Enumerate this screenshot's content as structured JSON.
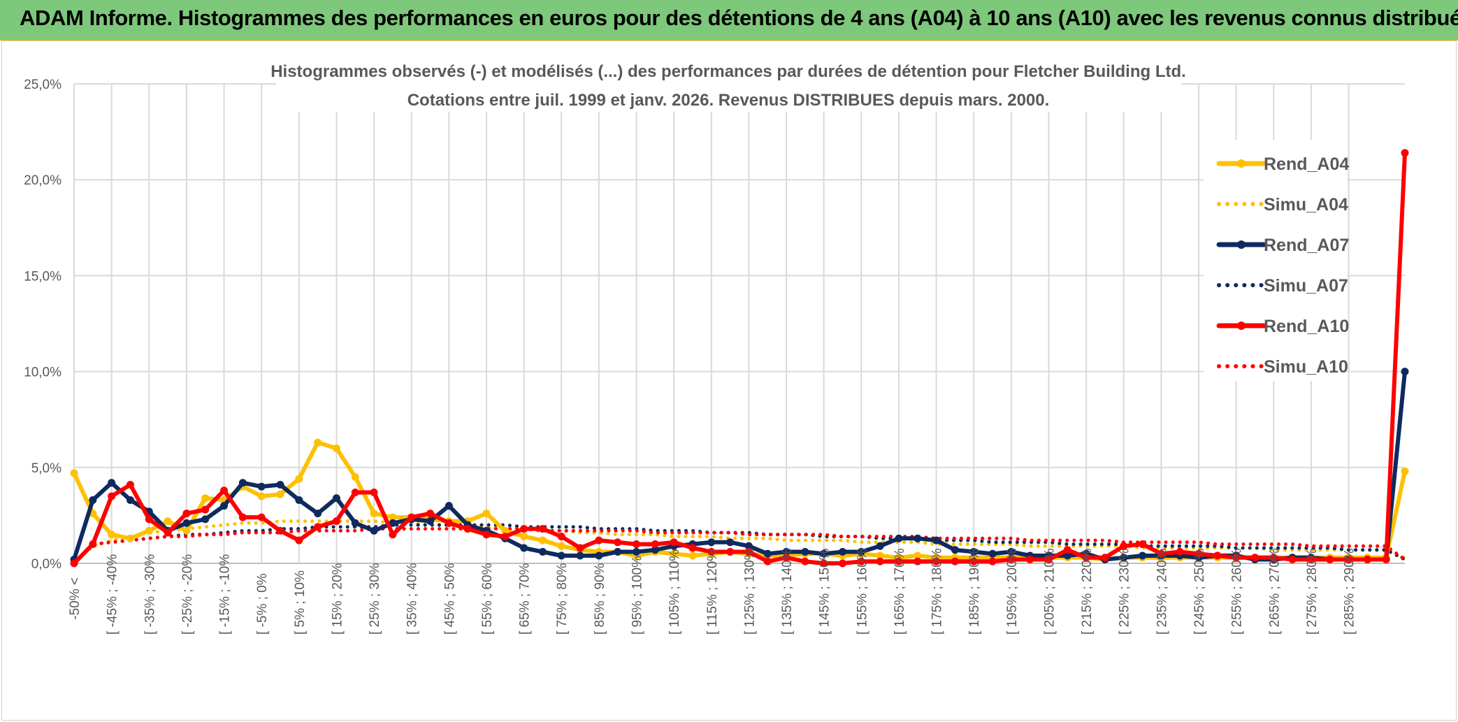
{
  "header": {
    "title": "ADAM Informe. Histogrammes des performances en euros pour des détentions de 4 ans (A04) à 10 ans (A10) avec les revenus connus distribués"
  },
  "chart_data": {
    "type": "line",
    "title": "Histogrammes observés (-) et modélisés (...) des performances par durées de détention pour Fletcher Building Ltd.",
    "subtitle": "Cotations entre juil. 1999 et janv. 2026. Revenus DISTRIBUES depuis mars. 2000.",
    "xlabel": "",
    "ylabel": "",
    "ylim": [
      0,
      25
    ],
    "yticks": [
      "0,0%",
      "5,0%",
      "10,0%",
      "15,0%",
      "20,0%",
      "25,0%"
    ],
    "grid": true,
    "legend_position": "right",
    "categories": [
      "-50% <",
      "[ -50% ; -45%",
      "[ -45% ; -40%",
      "[ -40% ; -35%",
      "[ -35% ; -30%",
      "[ -30% ; -25%",
      "[ -25% ; -20%",
      "[ -20% ; -15%",
      "[ -15% ; -10%",
      "[ -10% ; -5%",
      "[ -5% ; 0%",
      "[ 0% ; 5%",
      "[ 5% ; 10%",
      "[ 10% ; 15%",
      "[ 15% ; 20%",
      "[ 20% ; 25%",
      "[ 25% ; 30%",
      "[ 30% ; 35%",
      "[ 35% ; 40%",
      "[ 40% ; 45%",
      "[ 45% ; 50%",
      "[ 50% ; 55%",
      "[ 55% ; 60%",
      "[ 60% ; 65%",
      "[ 65% ; 70%",
      "[ 70% ; 75%",
      "[ 75% ; 80%",
      "[ 80% ; 85%",
      "[ 85% ; 90%",
      "[ 90% ; 95%",
      "[ 95% ; 100%",
      "[ 100% ; 105%",
      "[ 105% ; 110%",
      "[ 110% ; 115%",
      "[ 115% ; 120%",
      "[ 120% ; 125%",
      "[ 125% ; 130%",
      "[ 130% ; 135%",
      "[ 135% ; 140%",
      "[ 140% ; 145%",
      "[ 145% ; 150%",
      "[ 150% ; 155%",
      "[ 155% ; 160%",
      "[ 160% ; 165%",
      "[ 165% ; 170%",
      "[ 170% ; 175%",
      "[ 175% ; 180%",
      "[ 180% ; 185%",
      "[ 185% ; 190%",
      "[ 190% ; 195%",
      "[ 195% ; 200%",
      "[ 200% ; 205%",
      "[ 205% ; 210%",
      "[ 210% ; 215%",
      "[ 215% ; 220%",
      "[ 220% ; 225%",
      "[ 225% ; 230%",
      "[ 230% ; 235%",
      "[ 235% ; 240%",
      "[ 240% ; 245%",
      "[ 245% ; 250%",
      "[ 250% ; 255%",
      "[ 255% ; 260%",
      "[ 260% ; 265%",
      "[ 265% ; 270%",
      "[ 270% ; 275%",
      "[ 275% ; 280%",
      "[ 280% ; 285%",
      "[ 285% ; 290%",
      "[ 290% ; 295%",
      "[ 295% ; 300%",
      "> 300%"
    ],
    "visible_tick_labels": [
      "-50% <",
      "[ -45% ; -40%",
      "[ -35% ; -30%",
      "[ -25% ; -20%",
      "[ -15% ; -10%",
      "[ -5% ; 0%",
      "[ 5% ; 10%",
      "[ 15% ; 20%",
      "[ 25% ; 30%",
      "[ 35% ; 40%",
      "[ 45% ; 50%",
      "[ 55% ; 60%",
      "[ 65% ; 70%",
      "[ 75% ; 80%",
      "[ 85% ; 90%",
      "[ 95% ; 100%",
      "[ 105% ; 110%",
      "[ 115% ; 120%",
      "[ 125% ; 130%",
      "[ 135% ; 140%",
      "[ 145% ; 150%",
      "[ 155% ; 160%",
      "[ 165% ; 170%",
      "[ 175% ; 180%",
      "[ 185% ; 190%",
      "[ 195% ; 200%",
      "[ 205% ; 210%",
      "[ 215% ; 220%",
      "[ 225% ; 230%",
      "[ 235% ; 240%",
      "[ 245% ; 250%",
      "[ 255% ; 260%",
      "[ 265% ; 270%",
      "[ 275% ; 280%",
      "[ 285% ; 290%"
    ],
    "series": [
      {
        "name": "Rend_A04",
        "color": "#ffc000",
        "style": "solid",
        "values": [
          4.7,
          2.6,
          1.5,
          1.3,
          1.7,
          2.2,
          1.7,
          3.4,
          3.3,
          4.0,
          3.5,
          3.6,
          4.4,
          6.3,
          6.0,
          4.5,
          2.6,
          2.4,
          2.4,
          2.3,
          2.2,
          2.2,
          2.6,
          1.7,
          1.4,
          1.2,
          0.9,
          0.7,
          0.6,
          0.6,
          0.4,
          0.6,
          0.5,
          0.4,
          0.5,
          0.6,
          0.5,
          0.4,
          0.4,
          0.5,
          0.5,
          0.4,
          0.5,
          0.4,
          0.3,
          0.4,
          0.3,
          0.3,
          0.3,
          0.3,
          0.3,
          0.3,
          0.3,
          0.3,
          0.3,
          0.2,
          0.3,
          0.3,
          0.3,
          0.3,
          0.3,
          0.3,
          0.3,
          0.3,
          0.3,
          0.3,
          0.3,
          0.3,
          0.3,
          0.3,
          0.3,
          4.8
        ]
      },
      {
        "name": "Simu_A04",
        "color": "#ffc000",
        "style": "dotted",
        "values": [
          0.0,
          0.9,
          1.2,
          1.4,
          1.6,
          1.7,
          1.8,
          1.9,
          2.0,
          2.1,
          2.1,
          2.2,
          2.2,
          2.2,
          2.2,
          2.2,
          2.2,
          2.1,
          2.1,
          2.0,
          2.0,
          1.9,
          1.9,
          1.8,
          1.8,
          1.7,
          1.7,
          1.6,
          1.6,
          1.5,
          1.5,
          1.5,
          1.4,
          1.4,
          1.4,
          1.3,
          1.3,
          1.3,
          1.2,
          1.2,
          1.2,
          1.2,
          1.1,
          1.1,
          1.1,
          1.1,
          1.0,
          1.0,
          1.0,
          1.0,
          1.0,
          0.9,
          0.9,
          0.9,
          0.9,
          0.9,
          0.9,
          0.8,
          0.8,
          0.8,
          0.8,
          0.8,
          0.8,
          0.8,
          0.7,
          0.7,
          0.7,
          0.7,
          0.7,
          0.7,
          0.7,
          0.3
        ]
      },
      {
        "name": "Rend_A07",
        "color": "#0e2a5e",
        "style": "solid",
        "values": [
          0.2,
          3.3,
          4.2,
          3.3,
          2.7,
          1.7,
          2.1,
          2.3,
          3.0,
          4.2,
          4.0,
          4.1,
          3.3,
          2.6,
          3.4,
          2.1,
          1.7,
          2.1,
          2.3,
          2.2,
          3.0,
          2.0,
          1.7,
          1.3,
          0.8,
          0.6,
          0.4,
          0.4,
          0.4,
          0.6,
          0.6,
          0.7,
          0.9,
          1.0,
          1.1,
          1.1,
          0.9,
          0.5,
          0.6,
          0.6,
          0.5,
          0.6,
          0.6,
          0.9,
          1.3,
          1.3,
          1.2,
          0.7,
          0.6,
          0.5,
          0.6,
          0.4,
          0.4,
          0.4,
          0.5,
          0.2,
          0.3,
          0.4,
          0.4,
          0.4,
          0.3,
          0.4,
          0.4,
          0.2,
          0.2,
          0.3,
          0.3,
          0.2,
          0.2,
          0.2,
          0.2,
          10.0
        ]
      },
      {
        "name": "Simu_A07",
        "color": "#0e2a5e",
        "style": "dotted",
        "values": [
          0.0,
          1.0,
          1.1,
          1.2,
          1.3,
          1.4,
          1.5,
          1.5,
          1.6,
          1.7,
          1.7,
          1.8,
          1.8,
          1.9,
          1.9,
          1.9,
          1.9,
          2.0,
          2.0,
          2.0,
          2.0,
          2.0,
          2.0,
          2.0,
          1.9,
          1.9,
          1.9,
          1.9,
          1.8,
          1.8,
          1.8,
          1.7,
          1.7,
          1.7,
          1.6,
          1.6,
          1.6,
          1.5,
          1.5,
          1.5,
          1.4,
          1.4,
          1.4,
          1.3,
          1.3,
          1.3,
          1.2,
          1.2,
          1.2,
          1.1,
          1.1,
          1.1,
          1.1,
          1.0,
          1.0,
          1.0,
          1.0,
          0.9,
          0.9,
          0.9,
          0.9,
          0.9,
          0.8,
          0.8,
          0.8,
          0.8,
          0.8,
          0.8,
          0.7,
          0.7,
          0.7,
          0.2
        ]
      },
      {
        "name": "Rend_A10",
        "color": "#ff0000",
        "style": "solid",
        "values": [
          0.0,
          1.0,
          3.5,
          4.1,
          2.3,
          1.6,
          2.6,
          2.8,
          3.8,
          2.4,
          2.4,
          1.7,
          1.2,
          1.9,
          2.2,
          3.7,
          3.7,
          1.5,
          2.4,
          2.6,
          2.1,
          1.8,
          1.5,
          1.4,
          1.8,
          1.8,
          1.4,
          0.8,
          1.2,
          1.1,
          1.0,
          1.0,
          1.1,
          0.8,
          0.6,
          0.6,
          0.6,
          0.1,
          0.3,
          0.1,
          0.0,
          0.0,
          0.1,
          0.1,
          0.1,
          0.1,
          0.1,
          0.1,
          0.1,
          0.1,
          0.2,
          0.2,
          0.2,
          0.7,
          0.3,
          0.3,
          0.9,
          1.0,
          0.5,
          0.6,
          0.5,
          0.4,
          0.3,
          0.3,
          0.3,
          0.2,
          0.2,
          0.2,
          0.2,
          0.2,
          0.2,
          21.4
        ]
      },
      {
        "name": "Simu_A10",
        "color": "#ff0000",
        "style": "dotted",
        "values": [
          0.0,
          1.0,
          1.1,
          1.2,
          1.3,
          1.4,
          1.4,
          1.5,
          1.5,
          1.6,
          1.6,
          1.6,
          1.7,
          1.7,
          1.7,
          1.7,
          1.8,
          1.8,
          1.8,
          1.8,
          1.8,
          1.8,
          1.8,
          1.8,
          1.8,
          1.7,
          1.7,
          1.7,
          1.7,
          1.7,
          1.7,
          1.6,
          1.6,
          1.6,
          1.6,
          1.6,
          1.5,
          1.5,
          1.5,
          1.5,
          1.5,
          1.4,
          1.4,
          1.4,
          1.4,
          1.4,
          1.3,
          1.3,
          1.3,
          1.3,
          1.3,
          1.2,
          1.2,
          1.2,
          1.2,
          1.2,
          1.1,
          1.1,
          1.1,
          1.1,
          1.1,
          1.0,
          1.0,
          1.0,
          1.0,
          1.0,
          0.9,
          0.9,
          0.9,
          0.9,
          0.9,
          0.2
        ]
      }
    ]
  }
}
